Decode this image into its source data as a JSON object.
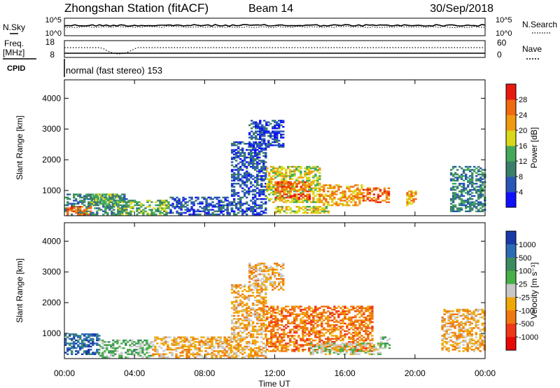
{
  "header": {
    "title": "Zhongshan Station (fitACF)",
    "beam": "Beam 14",
    "date": "30/Sep/2018"
  },
  "sky_panel": {
    "left_label": "N.Sky",
    "right_label": "N.Search",
    "left_ticks": [
      "10^5",
      "10^0"
    ],
    "right_ticks": [
      "10^5",
      "10^0"
    ]
  },
  "freq_panel": {
    "left_label_line1": "Freq.",
    "left_label_line2": "[MHz]",
    "right_label": "Nave",
    "left_ticks": [
      "18",
      "8"
    ],
    "right_ticks": [
      "60",
      "0"
    ]
  },
  "cpid": {
    "label": "CPID",
    "text": "normal (fast stereo) 153"
  },
  "chart_data": [
    {
      "type": "heatmap",
      "quantity": "Power",
      "ylabel": "Slant Range [km]",
      "colorbar_label": "Power [dB]",
      "yticks": [
        1000,
        2000,
        3000,
        4000
      ],
      "ylim": [
        180,
        4600
      ],
      "colorbar_ticks": [
        4,
        8,
        12,
        16,
        20,
        24,
        28
      ],
      "colorbar_colors": [
        "#1010ff",
        "#2a56b8",
        "#3a7f6a",
        "#44a85a",
        "#d8d818",
        "#f09a10",
        "#f06a10",
        "#e81a10"
      ],
      "regions": [
        {
          "t": [
            0.0,
            3.5
          ],
          "r": [
            200,
            900
          ],
          "level": 2
        },
        {
          "t": [
            0.0,
            1.5
          ],
          "r": [
            200,
            500
          ],
          "level": 6
        },
        {
          "t": [
            1.5,
            3.0
          ],
          "r": [
            500,
            900
          ],
          "level": 3
        },
        {
          "t": [
            3.0,
            6.0
          ],
          "r": [
            200,
            700
          ],
          "level": 3
        },
        {
          "t": [
            6.0,
            9.5
          ],
          "r": [
            200,
            800
          ],
          "level": 1
        },
        {
          "t": [
            9.5,
            11.5
          ],
          "r": [
            200,
            2600
          ],
          "level": 1
        },
        {
          "t": [
            11.5,
            14.5
          ],
          "r": [
            600,
            1800
          ],
          "level": 4
        },
        {
          "t": [
            12.0,
            14.0
          ],
          "r": [
            700,
            1300
          ],
          "level": 6
        },
        {
          "t": [
            14.5,
            17.0
          ],
          "r": [
            500,
            1200
          ],
          "level": 5
        },
        {
          "t": [
            17.0,
            18.5
          ],
          "r": [
            600,
            1100
          ],
          "level": 6
        },
        {
          "t": [
            12.0,
            15.0
          ],
          "r": [
            250,
            500
          ],
          "level": 4
        },
        {
          "t": [
            19.5,
            20.0
          ],
          "r": [
            500,
            1000
          ],
          "level": 5
        },
        {
          "t": [
            22.0,
            24.0
          ],
          "r": [
            300,
            1800
          ],
          "level": 2
        },
        {
          "t": [
            10.5,
            12.5
          ],
          "r": [
            2400,
            3300
          ],
          "level": 1
        }
      ]
    },
    {
      "type": "heatmap",
      "quantity": "Velocity",
      "ylabel": "Slant Range [km]",
      "colorbar_label": "Velocity [m s⁻¹]",
      "yticks": [
        1000,
        2000,
        3000,
        4000
      ],
      "ylim": [
        180,
        4600
      ],
      "colorbar_ticks": [
        1000,
        500,
        100,
        25,
        -25,
        -100,
        -500,
        -1000
      ],
      "colorbar_colors": [
        "#1a3aa8",
        "#2c6cb4",
        "#3c8c60",
        "#48b048",
        "#c8c8c8",
        "#f0a808",
        "#f07810",
        "#f03818",
        "#e80808"
      ],
      "regions": [
        {
          "t": [
            0.0,
            2.0
          ],
          "r": [
            300,
            1000
          ],
          "level": 1
        },
        {
          "t": [
            2.0,
            5.0
          ],
          "r": [
            200,
            800
          ],
          "level": 3
        },
        {
          "t": [
            5.0,
            9.5
          ],
          "r": [
            200,
            900
          ],
          "level": 5
        },
        {
          "t": [
            9.5,
            11.5
          ],
          "r": [
            200,
            2600
          ],
          "level": 5
        },
        {
          "t": [
            11.5,
            17.5
          ],
          "r": [
            400,
            1900
          ],
          "level": 6
        },
        {
          "t": [
            14.0,
            18.0
          ],
          "r": [
            300,
            700
          ],
          "level": 4
        },
        {
          "t": [
            18.0,
            18.5
          ],
          "r": [
            500,
            900
          ],
          "level": 3
        },
        {
          "t": [
            21.5,
            24.0
          ],
          "r": [
            400,
            1800
          ],
          "level": 5
        },
        {
          "t": [
            10.5,
            12.5
          ],
          "r": [
            2400,
            3300
          ],
          "level": 5
        }
      ]
    }
  ],
  "time_axis": {
    "label": "Time UT",
    "ticks": [
      "00:00",
      "04:00",
      "08:00",
      "12:00",
      "16:00",
      "20:00",
      "00:00"
    ]
  }
}
